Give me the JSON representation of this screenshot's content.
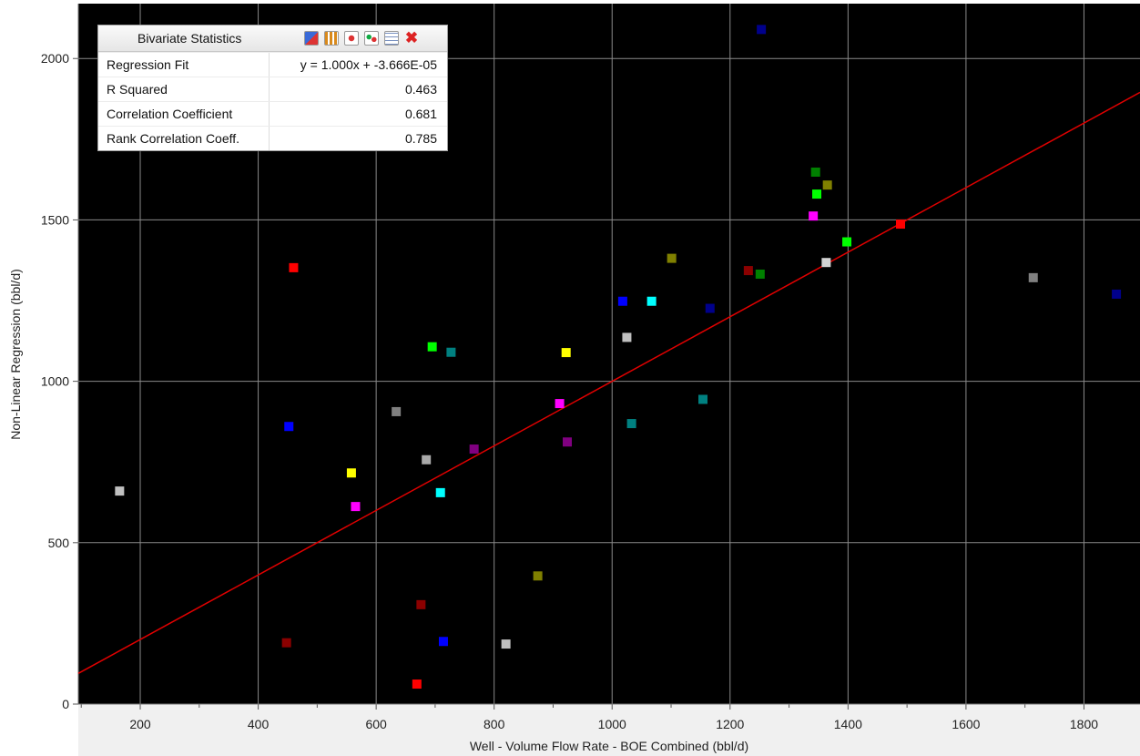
{
  "chart_data": {
    "type": "scatter",
    "xlabel": "Well - Volume Flow Rate - BOE Combined (bbl/d)",
    "ylabel": "Non-Linear Regression (bbl/d)",
    "xlim": [
      95,
      1895
    ],
    "ylim": [
      0,
      2170
    ],
    "x_ticks": [
      200,
      400,
      600,
      800,
      1000,
      1200,
      1400,
      1600,
      1800
    ],
    "y_ticks": [
      0,
      500,
      1000,
      1500,
      2000
    ],
    "grid": true,
    "background": "#000000",
    "regression_line": {
      "slope": 1.0,
      "intercept": -3.666e-05,
      "color": "#e00000"
    },
    "points": [
      {
        "x": 165,
        "y": 660,
        "color": "#c0c0c0"
      },
      {
        "x": 448,
        "y": 190,
        "color": "#8b0000"
      },
      {
        "x": 452,
        "y": 860,
        "color": "#0000ff"
      },
      {
        "x": 460,
        "y": 1352,
        "color": "#ff0000"
      },
      {
        "x": 558,
        "y": 716,
        "color": "#ffff00"
      },
      {
        "x": 565,
        "y": 612,
        "color": "#ff00ff"
      },
      {
        "x": 634,
        "y": 906,
        "color": "#808080"
      },
      {
        "x": 669,
        "y": 62,
        "color": "#ff0000"
      },
      {
        "x": 676,
        "y": 308,
        "color": "#8b0000"
      },
      {
        "x": 685,
        "y": 757,
        "color": "#a9a9a9"
      },
      {
        "x": 695,
        "y": 1107,
        "color": "#00ff00"
      },
      {
        "x": 709,
        "y": 655,
        "color": "#00ffff"
      },
      {
        "x": 714,
        "y": 194,
        "color": "#0000ff"
      },
      {
        "x": 727,
        "y": 1090,
        "color": "#008080"
      },
      {
        "x": 766,
        "y": 790,
        "color": "#800080"
      },
      {
        "x": 820,
        "y": 186,
        "color": "#c0c0c0"
      },
      {
        "x": 874,
        "y": 397,
        "color": "#808000"
      },
      {
        "x": 911,
        "y": 931,
        "color": "#ff00ff"
      },
      {
        "x": 922,
        "y": 1089,
        "color": "#ffff00"
      },
      {
        "x": 924,
        "y": 812,
        "color": "#800080"
      },
      {
        "x": 1018,
        "y": 1248,
        "color": "#0000ff"
      },
      {
        "x": 1025,
        "y": 1136,
        "color": "#c0c0c0"
      },
      {
        "x": 1033,
        "y": 869,
        "color": "#008080"
      },
      {
        "x": 1067,
        "y": 1248,
        "color": "#00ffff"
      },
      {
        "x": 1101,
        "y": 1381,
        "color": "#808000"
      },
      {
        "x": 1154,
        "y": 944,
        "color": "#008080"
      },
      {
        "x": 1166,
        "y": 1226,
        "color": "#00008b"
      },
      {
        "x": 1231,
        "y": 1343,
        "color": "#8b0000"
      },
      {
        "x": 1251,
        "y": 1332,
        "color": "#008000"
      },
      {
        "x": 1253,
        "y": 2090,
        "color": "#00008b"
      },
      {
        "x": 1341,
        "y": 1512,
        "color": "#ff00ff"
      },
      {
        "x": 1345,
        "y": 1648,
        "color": "#008000"
      },
      {
        "x": 1347,
        "y": 1580,
        "color": "#00ff00"
      },
      {
        "x": 1363,
        "y": 1368,
        "color": "#d3d3d3"
      },
      {
        "x": 1365,
        "y": 1608,
        "color": "#808000"
      },
      {
        "x": 1398,
        "y": 1432,
        "color": "#00ff00"
      },
      {
        "x": 1489,
        "y": 1487,
        "color": "#ff0000"
      },
      {
        "x": 1714,
        "y": 1321,
        "color": "#808080"
      },
      {
        "x": 1855,
        "y": 1270,
        "color": "#00008b"
      }
    ]
  },
  "stats": {
    "title": "Bivariate Statistics",
    "rows": [
      {
        "label": "Regression Fit",
        "value": "y = 1.000x + -3.666E-05"
      },
      {
        "label": "R Squared",
        "value": "0.463"
      },
      {
        "label": "Correlation Coefficient",
        "value": "0.681"
      },
      {
        "label": "Rank Correlation Coeff.",
        "value": "0.785"
      }
    ],
    "toolbar_icons": [
      "report-icon",
      "histogram-icon",
      "curve-fit-icon",
      "scatter-icon",
      "copy-icon",
      "close-icon"
    ]
  }
}
